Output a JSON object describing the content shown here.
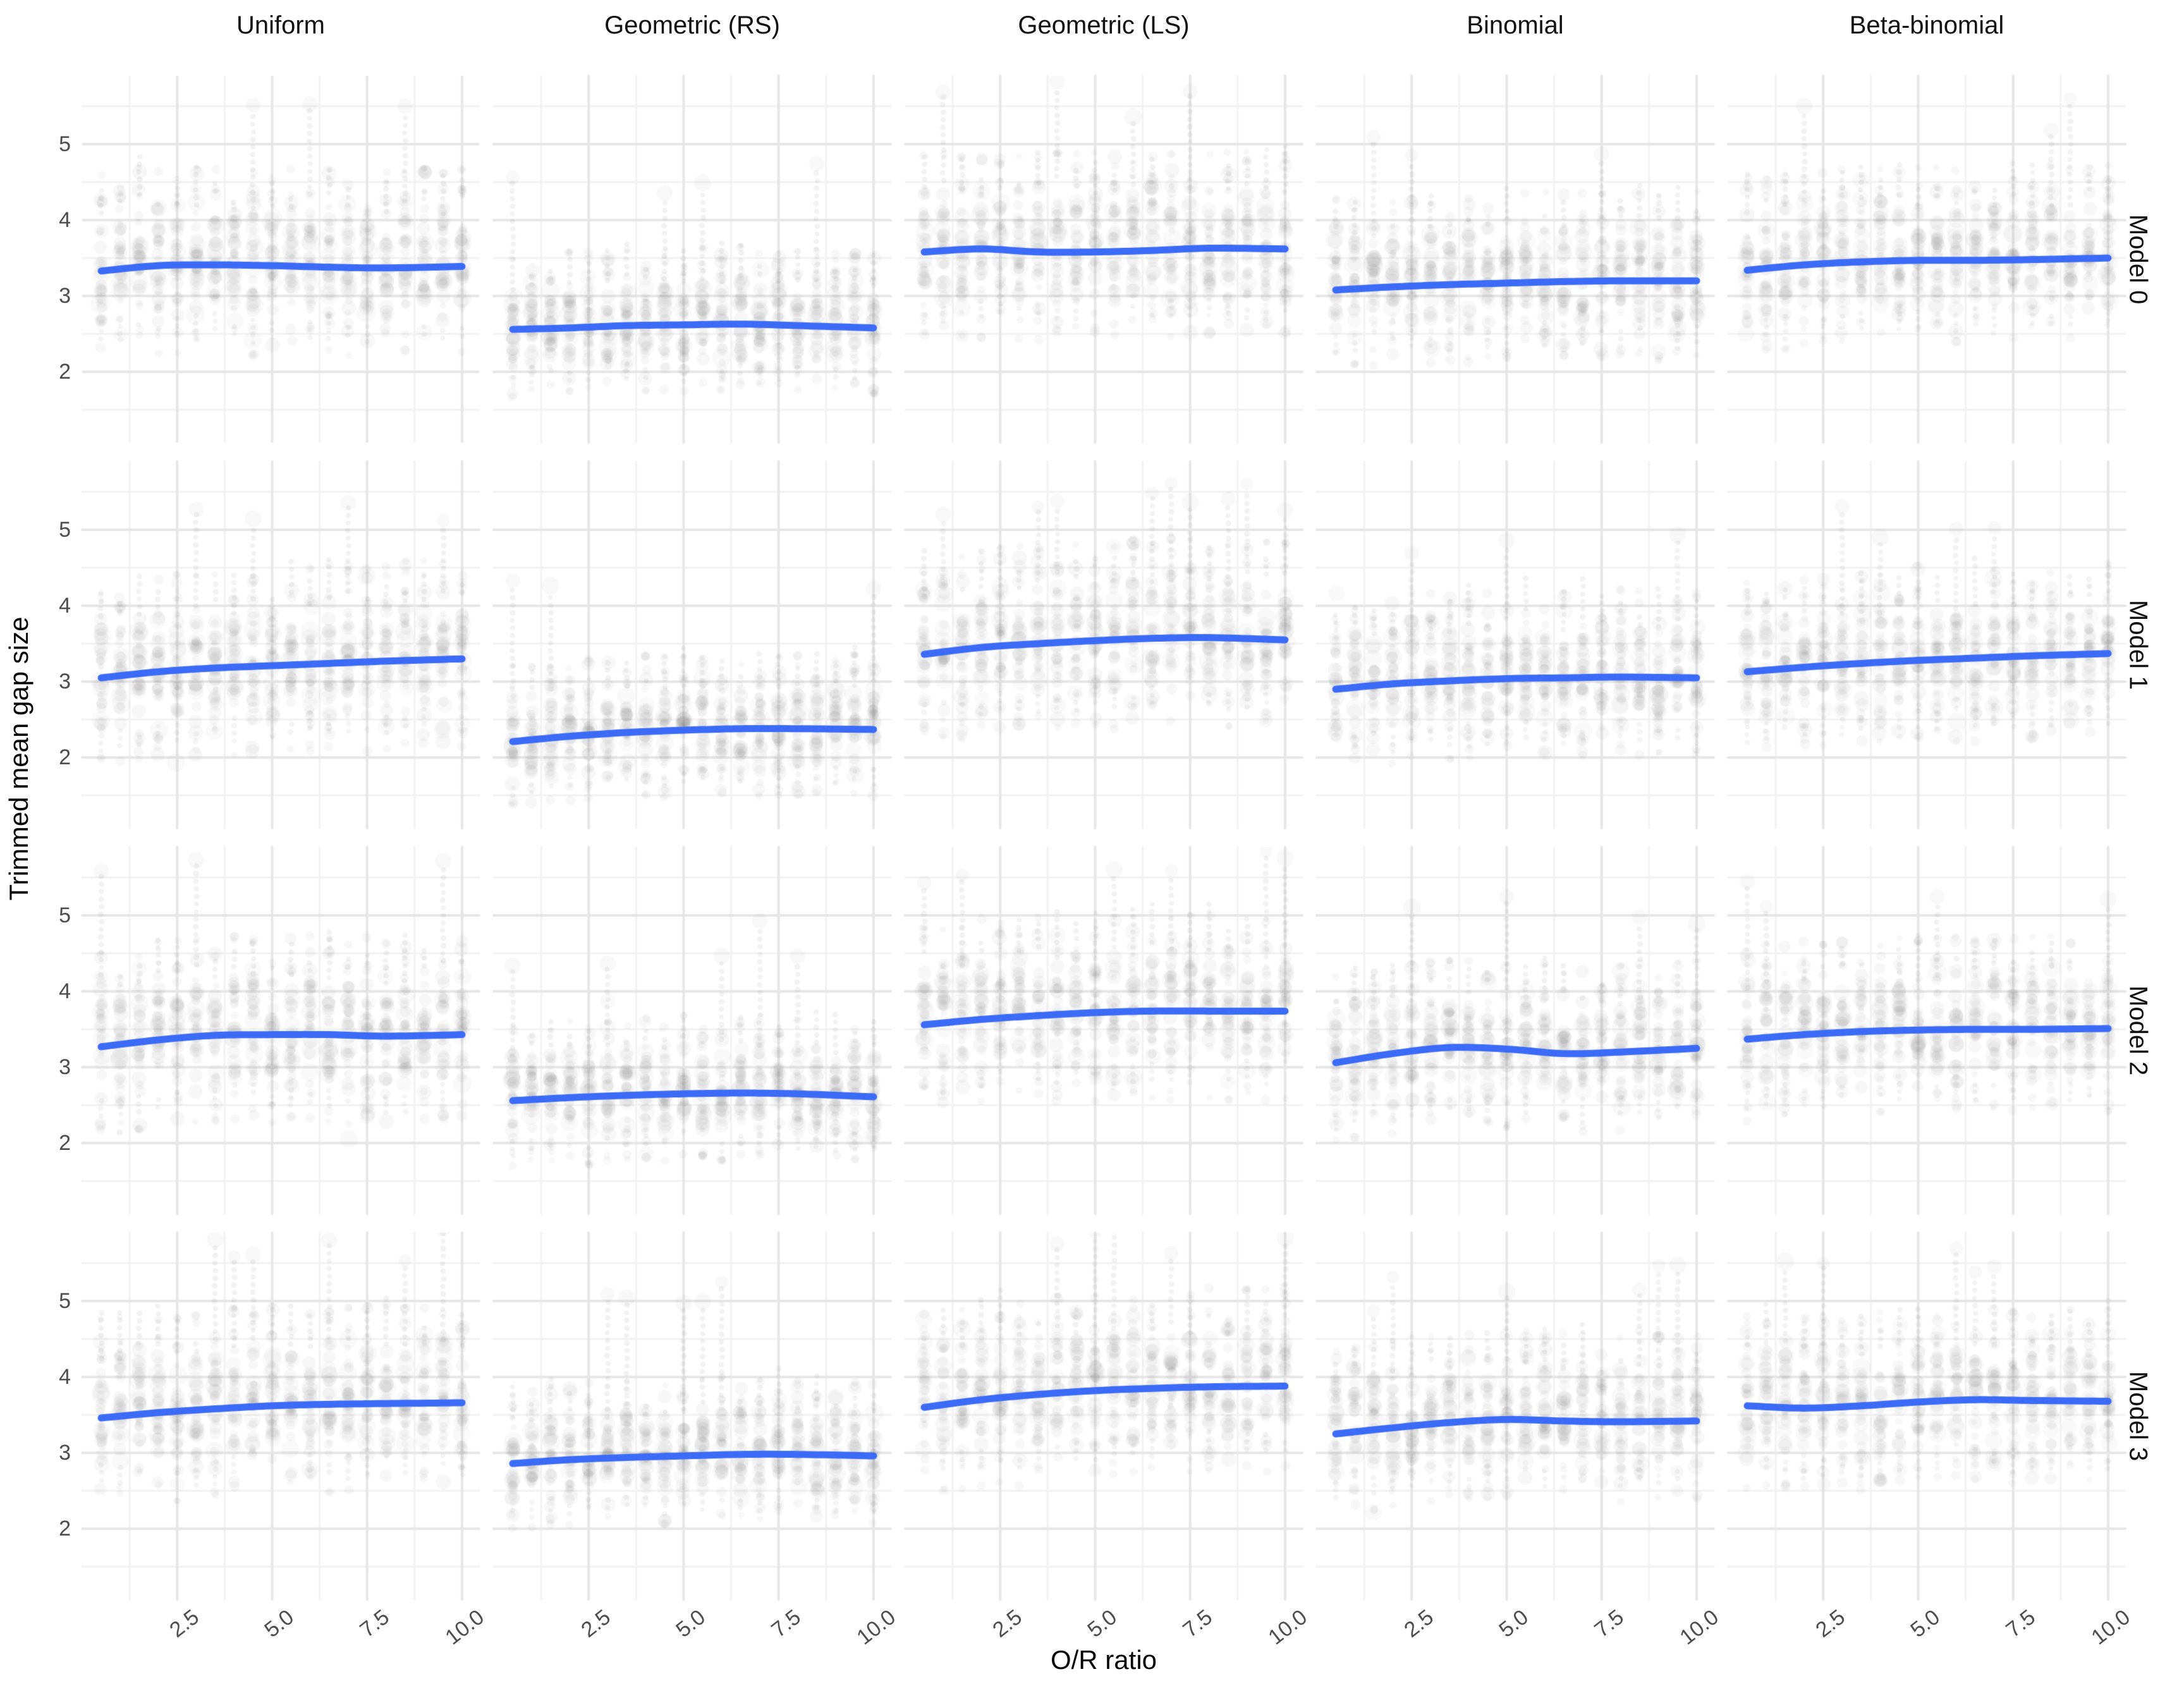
{
  "chart_data": {
    "type": "scatter",
    "title": "",
    "xlabel": "O/R ratio",
    "ylabel": "Trimmed mean gap size",
    "facet_columns": [
      "Uniform",
      "Geometric (RS)",
      "Geometric (LS)",
      "Binomial",
      "Beta-binomial"
    ],
    "facet_rows": [
      "Model 0",
      "Model 1",
      "Model 2",
      "Model 3"
    ],
    "x_ticks": [
      "2.5",
      "5.0",
      "7.5",
      "10.0"
    ],
    "x_tick_values": [
      2.5,
      5.0,
      7.5,
      10.0
    ],
    "y_ticks": [
      "5",
      "4",
      "3",
      "2"
    ],
    "y_tick_values": [
      5,
      4,
      3,
      2
    ],
    "x_minor": [
      1.25,
      3.75,
      6.25,
      8.75
    ],
    "y_minor": [
      1.5,
      2.5,
      3.5,
      4.5,
      5.5
    ],
    "x_domain": [
      0,
      10.45
    ],
    "y_domain": [
      1.07,
      5.9
    ],
    "grid": "on",
    "legend": "none",
    "strip_x_start": 0.5,
    "strip_x_end": 10,
    "strip_x_step": 0.5,
    "smooth_x": [
      0.5,
      2,
      3.5,
      5,
      6.5,
      8,
      10
    ],
    "colors": {
      "smooth_line": "#3B6BF7",
      "points": "#646464",
      "grid_major": "#e6e6e6",
      "grid_minor": "#f2f2f2",
      "axis_text": "#4d4d4d",
      "title_text": "#121212",
      "background": "#ffffff"
    },
    "cloud_by_column": [
      {
        "sigma": 0.5,
        "up": 1.95,
        "dn": 1.05
      },
      {
        "sigma": 0.38,
        "up": 1.9,
        "dn": 0.8
      },
      {
        "sigma": 0.5,
        "up": 1.85,
        "dn": 1.0
      },
      {
        "sigma": 0.45,
        "up": 1.7,
        "dn": 0.95
      },
      {
        "sigma": 0.47,
        "up": 1.75,
        "dn": 1.0
      }
    ],
    "panels": [
      {
        "row": 0,
        "col": 0,
        "smooth": [
          3.33,
          3.4,
          3.41,
          3.4,
          3.38,
          3.37,
          3.39
        ]
      },
      {
        "row": 0,
        "col": 1,
        "smooth": [
          2.56,
          2.58,
          2.61,
          2.62,
          2.63,
          2.61,
          2.58
        ]
      },
      {
        "row": 0,
        "col": 2,
        "smooth": [
          3.58,
          3.62,
          3.58,
          3.58,
          3.6,
          3.63,
          3.62
        ]
      },
      {
        "row": 0,
        "col": 3,
        "smooth": [
          3.08,
          3.12,
          3.15,
          3.17,
          3.19,
          3.2,
          3.2
        ]
      },
      {
        "row": 0,
        "col": 4,
        "smooth": [
          3.34,
          3.41,
          3.45,
          3.47,
          3.47,
          3.48,
          3.5
        ]
      },
      {
        "row": 1,
        "col": 0,
        "smooth": [
          3.05,
          3.13,
          3.18,
          3.21,
          3.24,
          3.27,
          3.3
        ]
      },
      {
        "row": 1,
        "col": 1,
        "smooth": [
          2.21,
          2.28,
          2.33,
          2.36,
          2.38,
          2.38,
          2.37
        ]
      },
      {
        "row": 1,
        "col": 2,
        "smooth": [
          3.36,
          3.45,
          3.5,
          3.54,
          3.57,
          3.58,
          3.55
        ]
      },
      {
        "row": 1,
        "col": 3,
        "smooth": [
          2.9,
          2.97,
          3.01,
          3.04,
          3.05,
          3.06,
          3.05
        ]
      },
      {
        "row": 1,
        "col": 4,
        "smooth": [
          3.13,
          3.19,
          3.24,
          3.28,
          3.31,
          3.34,
          3.37
        ]
      },
      {
        "row": 2,
        "col": 0,
        "smooth": [
          3.27,
          3.36,
          3.42,
          3.43,
          3.43,
          3.41,
          3.43
        ]
      },
      {
        "row": 2,
        "col": 1,
        "smooth": [
          2.56,
          2.6,
          2.63,
          2.65,
          2.66,
          2.65,
          2.61
        ]
      },
      {
        "row": 2,
        "col": 2,
        "smooth": [
          3.56,
          3.63,
          3.68,
          3.72,
          3.74,
          3.74,
          3.74
        ]
      },
      {
        "row": 2,
        "col": 3,
        "smooth": [
          3.06,
          3.18,
          3.26,
          3.24,
          3.18,
          3.2,
          3.25
        ]
      },
      {
        "row": 2,
        "col": 4,
        "smooth": [
          3.37,
          3.43,
          3.47,
          3.49,
          3.5,
          3.5,
          3.51
        ]
      },
      {
        "row": 3,
        "col": 0,
        "smooth": [
          3.46,
          3.53,
          3.58,
          3.62,
          3.64,
          3.65,
          3.66
        ]
      },
      {
        "row": 3,
        "col": 1,
        "smooth": [
          2.86,
          2.91,
          2.94,
          2.96,
          2.98,
          2.98,
          2.96
        ]
      },
      {
        "row": 3,
        "col": 2,
        "smooth": [
          3.6,
          3.7,
          3.77,
          3.82,
          3.85,
          3.87,
          3.88
        ]
      },
      {
        "row": 3,
        "col": 3,
        "smooth": [
          3.25,
          3.33,
          3.4,
          3.44,
          3.42,
          3.41,
          3.42
        ]
      },
      {
        "row": 3,
        "col": 4,
        "smooth": [
          3.62,
          3.59,
          3.62,
          3.67,
          3.7,
          3.69,
          3.68
        ]
      }
    ]
  }
}
